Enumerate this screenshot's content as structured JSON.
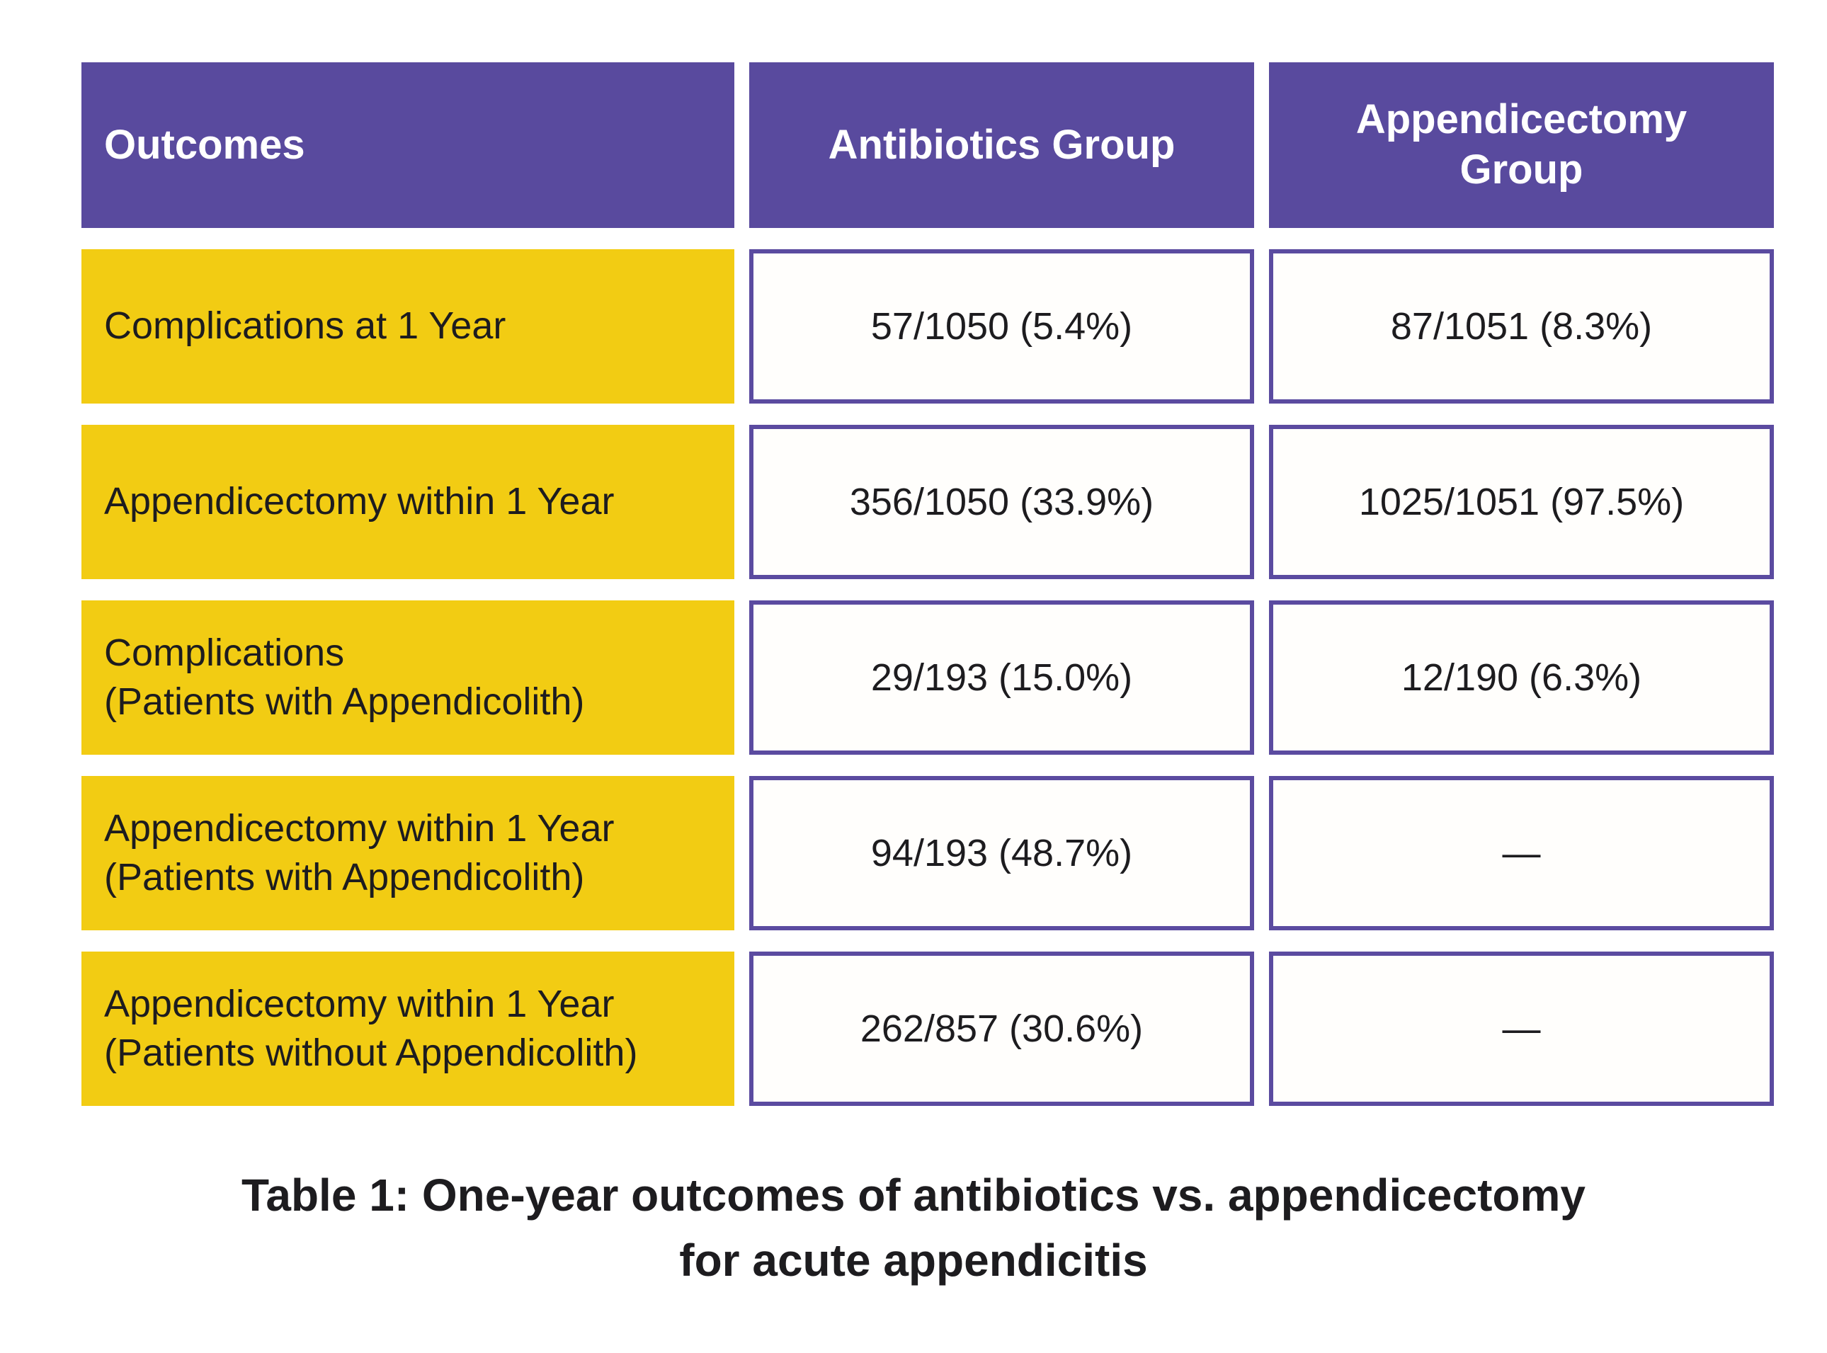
{
  "header": {
    "outcomes": "Outcomes",
    "antibiotics": "Antibiotics Group",
    "appendicectomy": "Appendicectomy\nGroup"
  },
  "rows": [
    {
      "label": "Complications at 1 Year",
      "antibiotics": "57/1050 (5.4%)",
      "appendicectomy": "87/1051 (8.3%)"
    },
    {
      "label": "Appendicectomy within 1 Year",
      "antibiotics": "356/1050 (33.9%)",
      "appendicectomy": "1025/1051 (97.5%)"
    },
    {
      "label": "Complications\n(Patients with Appendicolith)",
      "antibiotics": "29/193 (15.0%)",
      "appendicectomy": "12/190 (6.3%)"
    },
    {
      "label": "Appendicectomy within 1 Year\n(Patients with Appendicolith)",
      "antibiotics": "94/193 (48.7%)",
      "appendicectomy": "—"
    },
    {
      "label": "Appendicectomy within 1 Year\n(Patients without Appendicolith)",
      "antibiotics": "262/857 (30.6%)",
      "appendicectomy": "—"
    }
  ],
  "caption": "Table 1: One-year outcomes of antibiotics vs. appendicectomy\nfor acute appendicitis",
  "colors": {
    "header_purple": "#594a9e",
    "border_purple": "#5b4ba0",
    "cell_yellow": "#f2cc13",
    "text_dark": "#1d1c1f",
    "text_white": "#ffffff",
    "page_bg": "#ffffff"
  },
  "chart_data": {
    "type": "table",
    "title": "Table 1: One-year outcomes of antibiotics vs. appendicectomy for acute appendicitis",
    "columns": [
      "Outcomes",
      "Antibiotics Group",
      "Appendicectomy Group"
    ],
    "rows": [
      [
        "Complications at 1 Year",
        "57/1050 (5.4%)",
        "87/1051 (8.3%)"
      ],
      [
        "Appendicectomy within 1 Year",
        "356/1050 (33.9%)",
        "1025/1051 (97.5%)"
      ],
      [
        "Complications (Patients with Appendicolith)",
        "29/193 (15.0%)",
        "12/190 (6.3%)"
      ],
      [
        "Appendicectomy within 1 Year (Patients with Appendicolith)",
        "94/193 (48.7%)",
        "—"
      ],
      [
        "Appendicectomy within 1 Year (Patients without Appendicolith)",
        "262/857 (30.6%)",
        "—"
      ]
    ],
    "values": {
      "complications_1yr": {
        "antibiotics_n": 57,
        "antibiotics_total": 1050,
        "antibiotics_pct": 5.4,
        "appendicectomy_n": 87,
        "appendicectomy_total": 1051,
        "appendicectomy_pct": 8.3
      },
      "appendicectomy_1yr": {
        "antibiotics_n": 356,
        "antibiotics_total": 1050,
        "antibiotics_pct": 33.9,
        "appendicectomy_n": 1025,
        "appendicectomy_total": 1051,
        "appendicectomy_pct": 97.5
      },
      "complications_with_appendicolith": {
        "antibiotics_n": 29,
        "antibiotics_total": 193,
        "antibiotics_pct": 15.0,
        "appendicectomy_n": 12,
        "appendicectomy_total": 190,
        "appendicectomy_pct": 6.3
      },
      "appendicectomy_1yr_with_appendicolith": {
        "antibiotics_n": 94,
        "antibiotics_total": 193,
        "antibiotics_pct": 48.7,
        "appendicectomy": null
      },
      "appendicectomy_1yr_without_appendicolith": {
        "antibiotics_n": 262,
        "antibiotics_total": 857,
        "antibiotics_pct": 30.6,
        "appendicectomy": null
      }
    }
  }
}
